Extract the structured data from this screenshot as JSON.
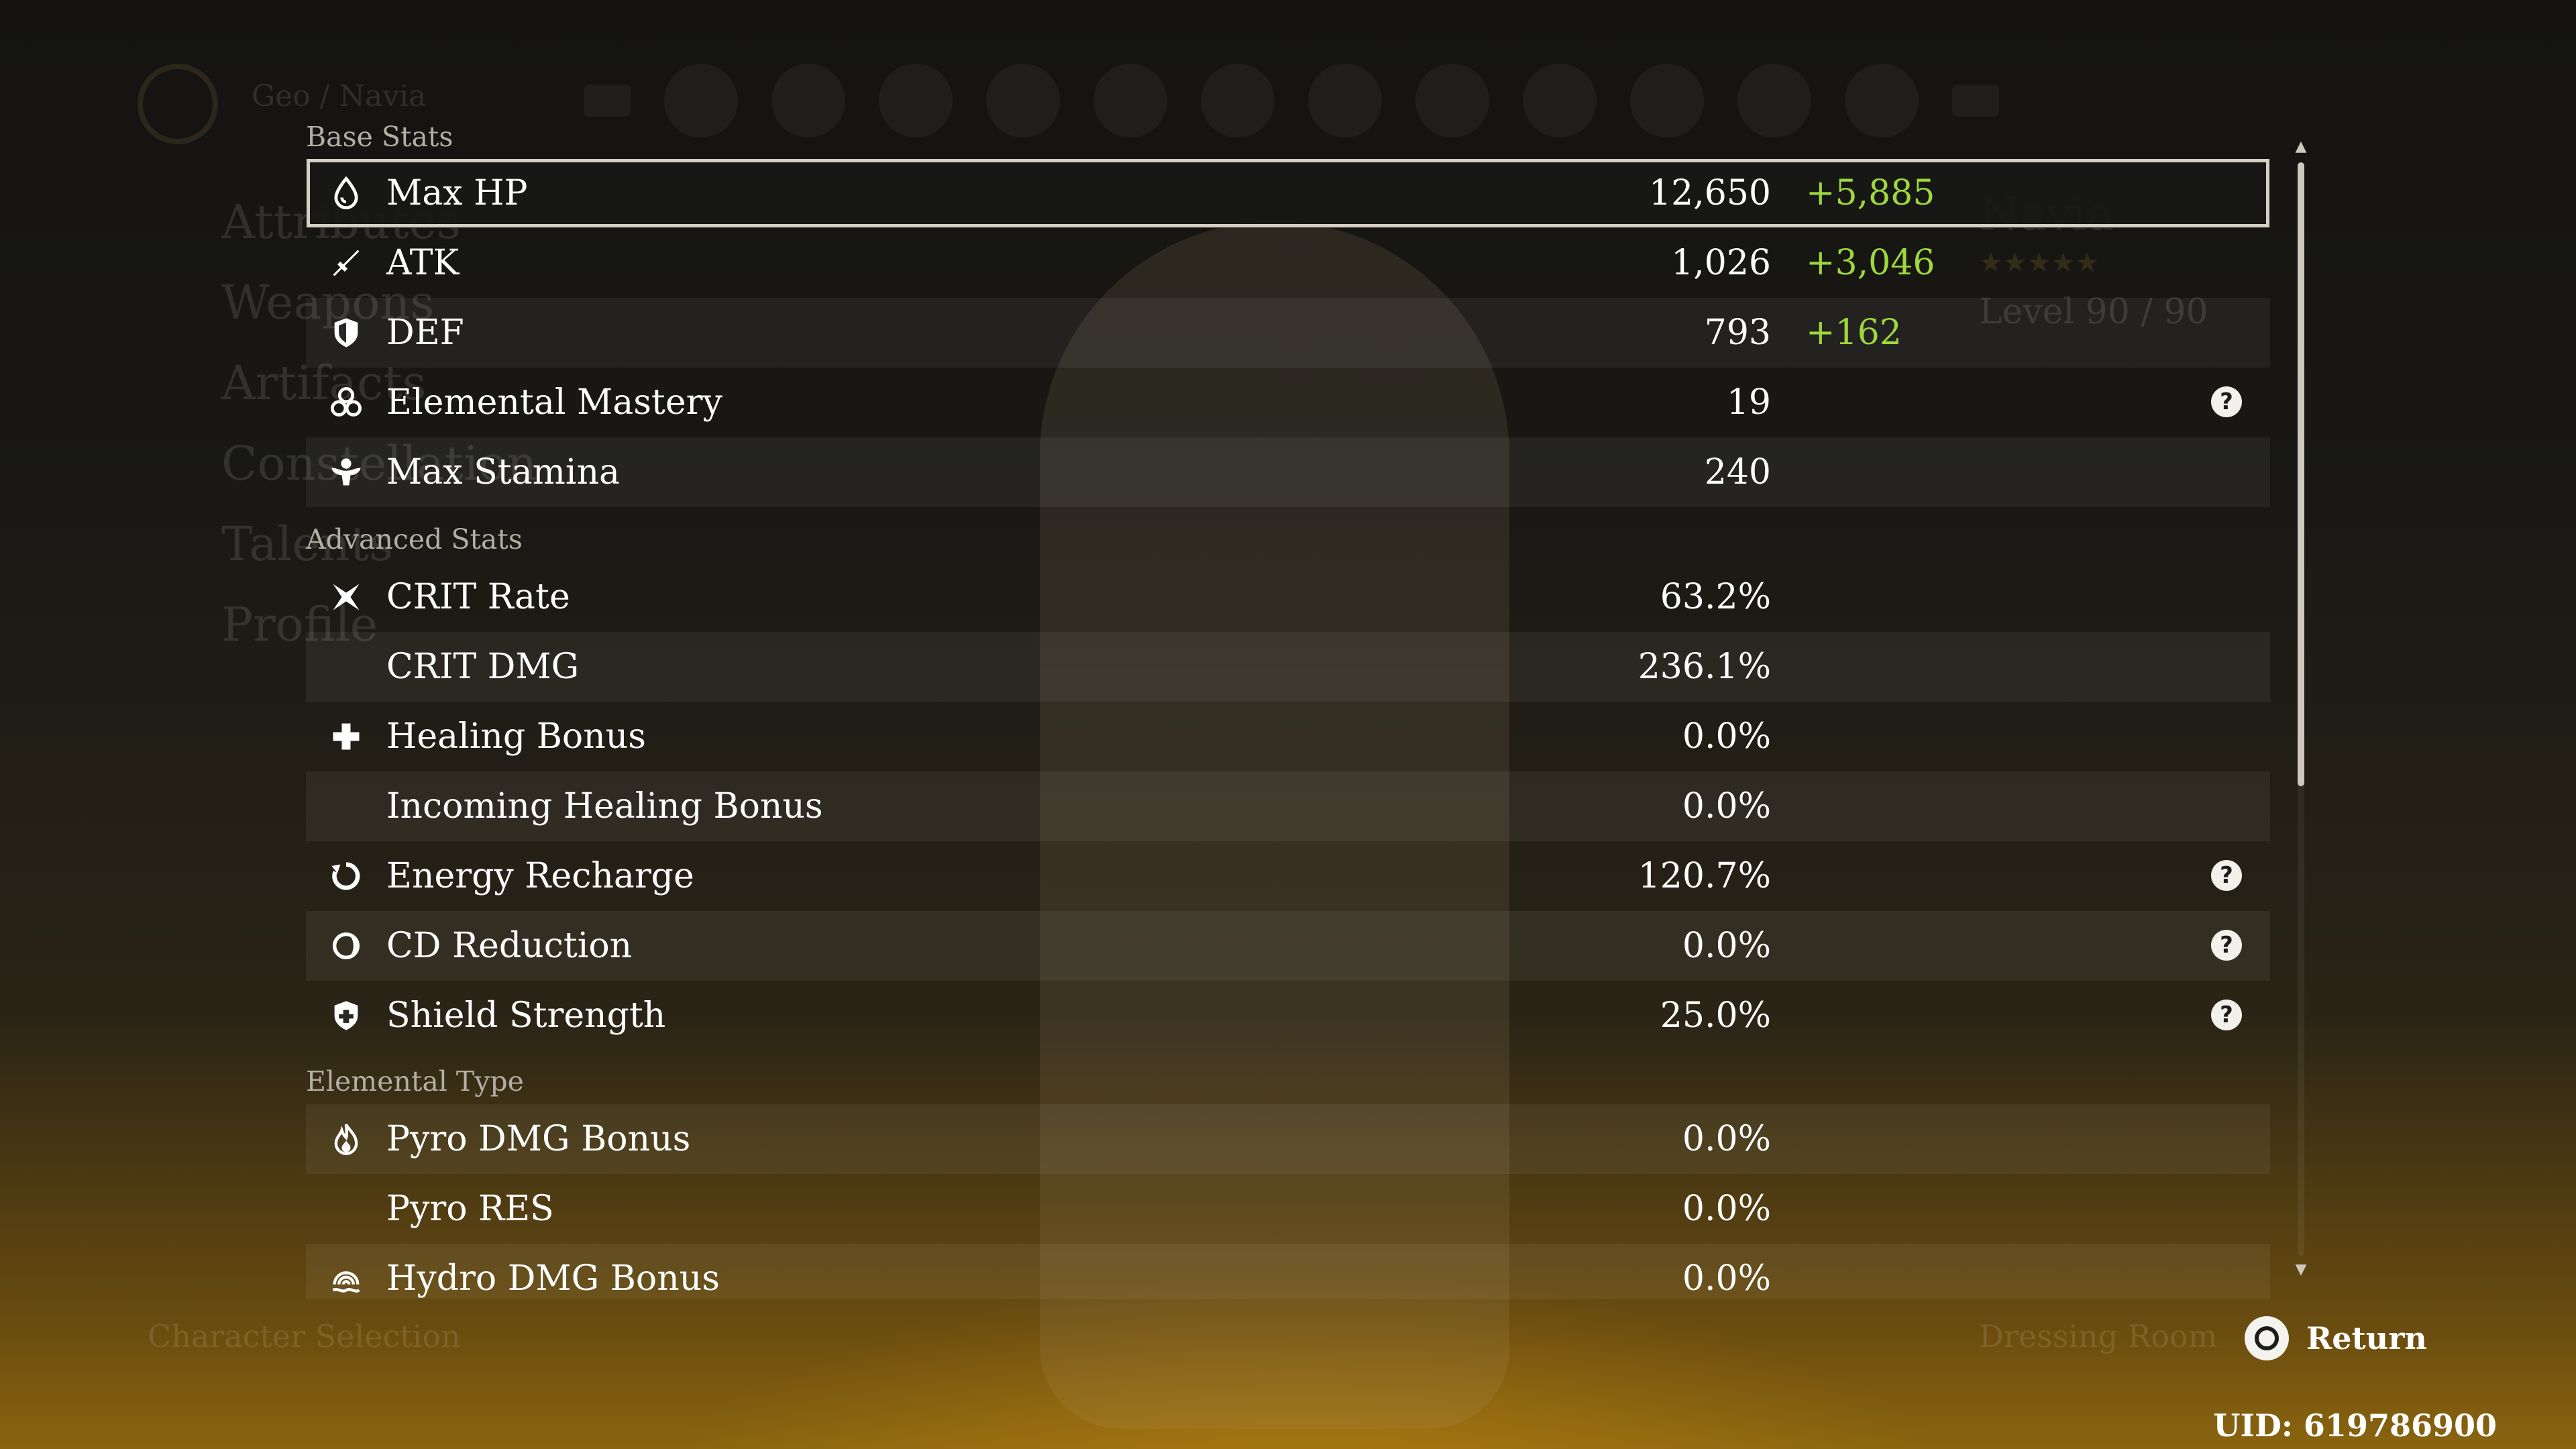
{
  "background": {
    "breadcrumb": "Geo / Navia",
    "menu": [
      "Attributes",
      "Weapons",
      "Artifacts",
      "Constellation",
      "Talents",
      "Profile"
    ],
    "character_name": "Navia",
    "stars": "★★★★★",
    "level": "Level 90 / 90",
    "bottom_left": "Character Selection",
    "dressing_room": "Dressing Room"
  },
  "sections": {
    "base": "Base Stats",
    "advanced": "Advanced Stats",
    "elemental": "Elemental Type"
  },
  "base_stats": [
    {
      "icon": "hp-drop-icon",
      "name": "Max HP",
      "value": "12,650",
      "bonus": "+5,885",
      "help": false
    },
    {
      "icon": "atk-sword-icon",
      "name": "ATK",
      "value": "1,026",
      "bonus": "+3,046",
      "help": false
    },
    {
      "icon": "def-shield-icon",
      "name": "DEF",
      "value": "793",
      "bonus": "+162",
      "help": false
    },
    {
      "icon": "elemental-mastery-icon",
      "name": "Elemental Mastery",
      "value": "19",
      "bonus": "",
      "help": true
    },
    {
      "icon": "stamina-icon",
      "name": "Max Stamina",
      "value": "240",
      "bonus": "",
      "help": false
    }
  ],
  "advanced_stats": [
    {
      "icon": "crit-rate-icon",
      "name": "CRIT Rate",
      "value": "63.2%",
      "help": false
    },
    {
      "icon": "",
      "name": "CRIT DMG",
      "value": "236.1%",
      "help": false
    },
    {
      "icon": "healing-cross-icon",
      "name": "Healing Bonus",
      "value": "0.0%",
      "help": false
    },
    {
      "icon": "",
      "name": "Incoming Healing Bonus",
      "value": "0.0%",
      "help": false
    },
    {
      "icon": "energy-recharge-icon",
      "name": "Energy Recharge",
      "value": "120.7%",
      "help": true
    },
    {
      "icon": "cd-reduction-icon",
      "name": "CD Reduction",
      "value": "0.0%",
      "help": true
    },
    {
      "icon": "shield-strength-icon",
      "name": "Shield Strength",
      "value": "25.0%",
      "help": true
    }
  ],
  "elemental_stats": [
    {
      "icon": "pyro-icon",
      "name": "Pyro DMG Bonus",
      "value": "0.0%"
    },
    {
      "icon": "",
      "name": "Pyro RES",
      "value": "0.0%"
    },
    {
      "icon": "hydro-icon",
      "name": "Hydro DMG Bonus",
      "value": "0.0%"
    }
  ],
  "scroll_position": 0.0,
  "footer": {
    "return_label": "Return",
    "uid": "UID: 619786900"
  },
  "colors": {
    "bonus_green": "#9ed83c",
    "text": "#ffffff",
    "section_label": "#b3ada3"
  }
}
